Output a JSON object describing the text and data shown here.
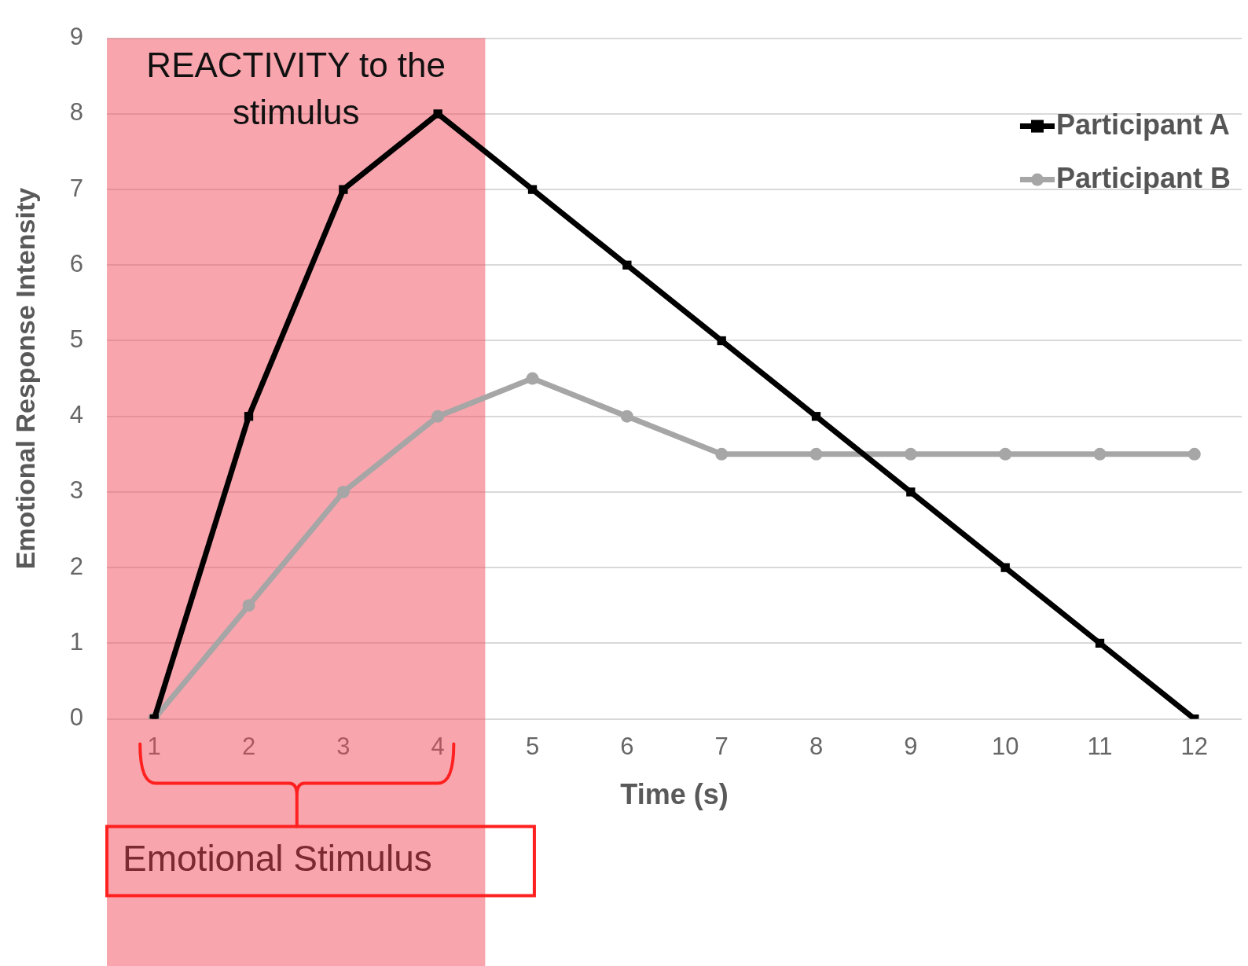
{
  "chart_data": {
    "type": "line",
    "xlabel": "Time (s)",
    "ylabel": "Emotional Response Intensity",
    "x": [
      1,
      2,
      3,
      4,
      5,
      6,
      7,
      8,
      9,
      10,
      11,
      12
    ],
    "xlim": [
      0.5,
      12.5
    ],
    "xticks": [
      1,
      2,
      3,
      4,
      5,
      6,
      7,
      8,
      9,
      10,
      11,
      12
    ],
    "ylim": [
      0,
      9
    ],
    "yticks": [
      0,
      1,
      2,
      3,
      4,
      5,
      6,
      7,
      8,
      9
    ],
    "series": [
      {
        "name": "Participant A",
        "color": "#000000",
        "marker": "square",
        "values": [
          0,
          4,
          7,
          8,
          7,
          6,
          5,
          4,
          3,
          2,
          1,
          0
        ]
      },
      {
        "name": "Participant B",
        "color": "#a6a6a6",
        "marker": "circle",
        "values": [
          0,
          1.5,
          3,
          4,
          4.5,
          4,
          3.5,
          3.5,
          3.5,
          3.5,
          3.5,
          3.5
        ]
      }
    ],
    "bands": [
      {
        "axis": "x",
        "from": 0.5,
        "to": 4.5,
        "label": "Emotional Stimulus",
        "color": "#f24c5b"
      }
    ],
    "annotations": [
      "REACTIVITY to the stimulus"
    ],
    "grid": "y",
    "legend": "top right",
    "line_style": "solid"
  }
}
